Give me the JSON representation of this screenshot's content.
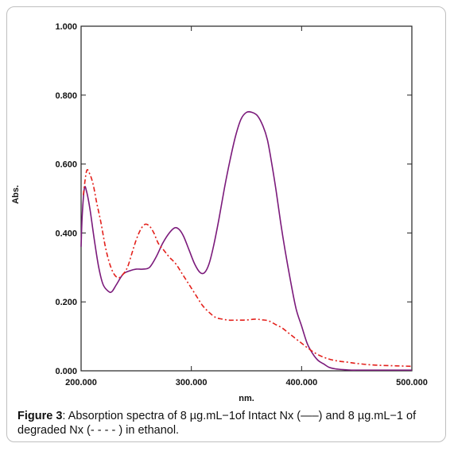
{
  "chart_data": {
    "type": "line",
    "xlabel": "nm.",
    "ylabel": "Abs.",
    "xlim": [
      200,
      500
    ],
    "ylim": [
      0,
      1
    ],
    "x_ticks": [
      "200.000",
      "300.000",
      "400.000",
      "500.000"
    ],
    "y_ticks": [
      "0.000",
      "0.200",
      "0.400",
      "0.600",
      "0.800",
      "1.000"
    ],
    "grid": false,
    "series": [
      {
        "color": "#7b1a7b",
        "style": "solid",
        "x": [
          200,
          201,
          203,
          205,
          208,
          212,
          216,
          220,
          225,
          228,
          232,
          238,
          244,
          250,
          256,
          262,
          268,
          274,
          280,
          285,
          289,
          293,
          298,
          303,
          308,
          312,
          316,
          320,
          325,
          330,
          335,
          340,
          345,
          350,
          355,
          360,
          365,
          369,
          373,
          377,
          381,
          385,
          390,
          395,
          400,
          405,
          410,
          415,
          420,
          425,
          430,
          435,
          440,
          445,
          450,
          460,
          470,
          480,
          490,
          500
        ],
        "y": [
          0.36,
          0.45,
          0.53,
          0.52,
          0.47,
          0.38,
          0.3,
          0.25,
          0.23,
          0.23,
          0.25,
          0.28,
          0.29,
          0.295,
          0.295,
          0.3,
          0.33,
          0.37,
          0.4,
          0.415,
          0.41,
          0.39,
          0.35,
          0.31,
          0.285,
          0.285,
          0.31,
          0.36,
          0.44,
          0.53,
          0.61,
          0.68,
          0.73,
          0.75,
          0.75,
          0.74,
          0.71,
          0.67,
          0.6,
          0.52,
          0.43,
          0.35,
          0.26,
          0.18,
          0.13,
          0.08,
          0.05,
          0.03,
          0.02,
          0.01,
          0.006,
          0.004,
          0.003,
          0.002,
          0.002,
          0.002,
          0.002,
          0.002,
          0.002,
          0.002
        ]
      },
      {
        "color": "#e3201b",
        "style": "dash-dot",
        "x": [
          202,
          205,
          208,
          211,
          214,
          218,
          222,
          226,
          230,
          234,
          238,
          242,
          246,
          250,
          254,
          258,
          262,
          266,
          270,
          275,
          280,
          286,
          292,
          298,
          304,
          310,
          316,
          322,
          328,
          334,
          340,
          346,
          352,
          358,
          364,
          370,
          376,
          382,
          388,
          394,
          400,
          406,
          412,
          418,
          424,
          430,
          436,
          442,
          448,
          454,
          460,
          470,
          480,
          490,
          500
        ],
        "y": [
          0.51,
          0.58,
          0.57,
          0.54,
          0.49,
          0.43,
          0.36,
          0.31,
          0.28,
          0.27,
          0.28,
          0.3,
          0.34,
          0.38,
          0.41,
          0.425,
          0.42,
          0.4,
          0.37,
          0.35,
          0.33,
          0.31,
          0.28,
          0.25,
          0.22,
          0.19,
          0.17,
          0.155,
          0.15,
          0.147,
          0.147,
          0.147,
          0.148,
          0.15,
          0.148,
          0.145,
          0.135,
          0.125,
          0.11,
          0.095,
          0.08,
          0.065,
          0.052,
          0.042,
          0.035,
          0.03,
          0.027,
          0.025,
          0.022,
          0.02,
          0.018,
          0.016,
          0.015,
          0.014,
          0.013
        ]
      }
    ]
  },
  "caption": {
    "label": "Figure 3",
    "text": ": Absorption spectra of 8 µg.mL−1of Intact Nx (—–) and 8 µg.mL−1 of degraded Nx (- - - - ) in ethanol."
  }
}
